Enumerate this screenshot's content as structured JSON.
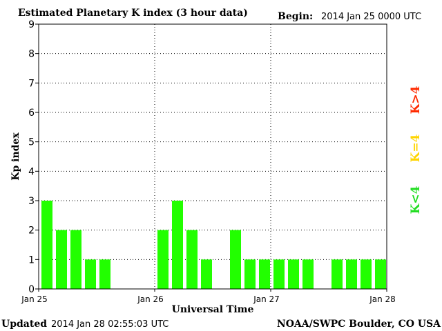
{
  "header": {
    "title": "Estimated Planetary K index (3 hour data)",
    "begin_label": "Begin:",
    "begin_value": "2014 Jan 25 0000 UTC"
  },
  "footer": {
    "updated_label": "Updated",
    "updated_value": "2014 Jan 28 02:55:03 UTC",
    "source": "NOAA/SWPC Boulder, CO USA"
  },
  "legend": {
    "items": [
      {
        "label": "K>4",
        "color": "#ff2a00"
      },
      {
        "label": "K=4",
        "color": "#ffd500"
      },
      {
        "label": "K<4",
        "color": "#22dd22"
      }
    ]
  },
  "chart_data": {
    "type": "bar",
    "title": "Estimated Planetary K index (3 hour data)",
    "xlabel": "Universal Time",
    "ylabel": "Kp index",
    "ylim": [
      0,
      9
    ],
    "yticks": [
      "0",
      "1",
      "2",
      "3",
      "4",
      "5",
      "6",
      "7",
      "8",
      "9"
    ],
    "xticks": [
      "Jan 25",
      "Jan 26",
      "Jan 27",
      "Jan 28"
    ],
    "bar_color": "#22ff00",
    "grid": true,
    "categories": [
      "Jan 25 00",
      "Jan 25 03",
      "Jan 25 06",
      "Jan 25 09",
      "Jan 25 12",
      "Jan 25 15",
      "Jan 25 18",
      "Jan 25 21",
      "Jan 26 00",
      "Jan 26 03",
      "Jan 26 06",
      "Jan 26 09",
      "Jan 26 12",
      "Jan 26 15",
      "Jan 26 18",
      "Jan 26 21",
      "Jan 27 00",
      "Jan 27 03",
      "Jan 27 06",
      "Jan 27 09",
      "Jan 27 12",
      "Jan 27 15",
      "Jan 27 18",
      "Jan 27 21"
    ],
    "values": [
      3,
      2,
      2,
      1,
      1,
      null,
      null,
      null,
      2,
      3,
      2,
      1,
      null,
      2,
      1,
      1,
      1,
      1,
      1,
      null,
      1,
      1,
      1,
      1
    ]
  }
}
